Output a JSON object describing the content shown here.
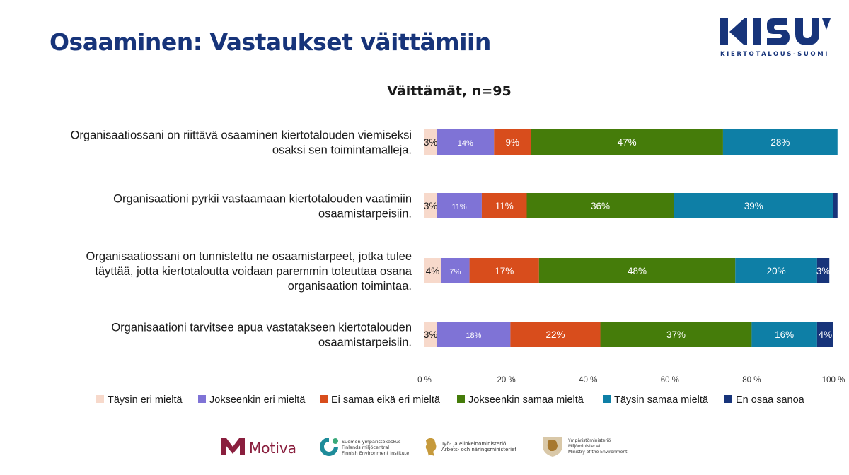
{
  "slide": {
    "title": "Osaaminen: Vastaukset väittämiin",
    "logo_text": "KIERTOTALOUS-SUOMI"
  },
  "footer": {
    "motiva": "Motiva",
    "syke": "Suomen ympäristökeskus\nFinlands miljöcentral\nFinnish Environment Institute",
    "tem": "Työ- ja elinkeinoministeriö\nArbets- och näringsministeriet",
    "ym": "Ympäristöministeriö\nMiljöministeriet\nMinistry of the Environment"
  },
  "chart_data": {
    "type": "bar",
    "orientation": "horizontal",
    "stacked": "percent",
    "title": "Väittämät, n=95",
    "categories": [
      "Organisaatiossani on riittävä osaaminen kiertotalouden viemiseksi osaksi sen toimintamalleja.",
      "Organisaationi pyrkii vastaamaan kiertotalouden vaatimiin osaamistarpeisiin.",
      "Organisaatiossani on tunnistettu ne osaamistarpeet, jotka tulee täyttää, jotta kiertotaloutta voidaan paremmin toteuttaa osana organisaation toimintaa.",
      "Organisaationi tarvitsee apua vastatakseen kiertotalouden osaamistarpeisiin."
    ],
    "series": [
      {
        "name": "Täysin eri mieltä",
        "color": "#f7d9cb",
        "values": [
          3,
          3,
          4,
          3
        ],
        "labels": [
          "3%",
          "3%",
          "4%",
          "3%"
        ]
      },
      {
        "name": "Jokseenkin eri mieltä",
        "color": "#7f73d6",
        "values": [
          14,
          11,
          7,
          18
        ],
        "labels": [
          "14%",
          "11%",
          "7%",
          "18%"
        ]
      },
      {
        "name": "Ei samaa eikä eri mieltä",
        "color": "#d84d1c",
        "values": [
          9,
          11,
          17,
          22
        ],
        "labels": [
          "9%",
          "11%",
          "17%",
          "22%"
        ]
      },
      {
        "name": "Jokseenkin samaa mieltä",
        "color": "#457c0a",
        "values": [
          47,
          36,
          48,
          37
        ],
        "labels": [
          "47%",
          "36%",
          "48%",
          "37%"
        ]
      },
      {
        "name": "Täysin samaa mieltä",
        "color": "#0e7fa6",
        "values": [
          28,
          39,
          20,
          16
        ],
        "labels": [
          "28%",
          "39%",
          "20%",
          "16%"
        ]
      },
      {
        "name": "En osaa sanoa",
        "color": "#17347a",
        "values": [
          0,
          1,
          3,
          4
        ],
        "labels": [
          "",
          "",
          "3%",
          "4%"
        ]
      }
    ],
    "xticks": [
      "0 %",
      "20 %",
      "40 %",
      "60 %",
      "80 %",
      "100 %"
    ],
    "xlim": [
      0,
      100
    ],
    "legend_position": "bottom"
  }
}
